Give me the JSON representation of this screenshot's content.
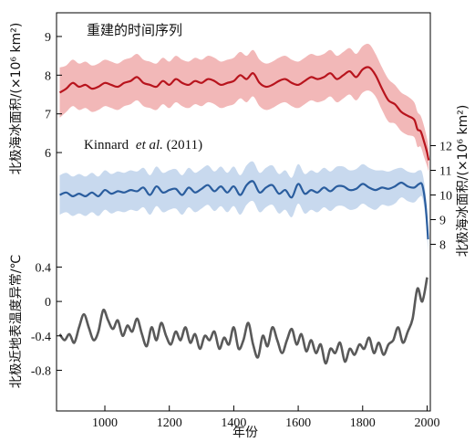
{
  "chart_data": {
    "type": "line",
    "xlabel": "年份",
    "x_ticks": [
      1000,
      1200,
      1400,
      1600,
      1800,
      2000
    ],
    "xlim": [
      850,
      2010
    ],
    "panels": [
      {
        "id": "reconstruction",
        "annotation": "重建的时间序列",
        "ylabel": "北极海冰面积/(×10⁶ km²)",
        "y_axis_side": "left",
        "y_ticks": [
          6,
          7,
          8,
          9
        ],
        "ylim": [
          5.6,
          9.4
        ],
        "colors": {
          "line": "#b8141d",
          "band": "#f2b8b8"
        },
        "series": [
          {
            "x": [
              860,
              880,
              900,
              920,
              940,
              960,
              980,
              1000,
              1020,
              1040,
              1060,
              1080,
              1100,
              1120,
              1140,
              1160,
              1180,
              1200,
              1220,
              1240,
              1260,
              1280,
              1300,
              1320,
              1340,
              1360,
              1380,
              1400,
              1420,
              1440,
              1460,
              1480,
              1500,
              1520,
              1540,
              1560,
              1580,
              1600,
              1620,
              1640,
              1660,
              1680,
              1700,
              1720,
              1740,
              1760,
              1780,
              1800,
              1820,
              1840,
              1860,
              1880,
              1900,
              1920,
              1940,
              1960,
              1970,
              1980,
              1990,
              2000,
              2005
            ],
            "y": [
              7.55,
              7.65,
              7.8,
              7.7,
              7.75,
              7.65,
              7.7,
              7.8,
              7.75,
              7.7,
              7.8,
              7.85,
              7.95,
              7.8,
              7.75,
              7.7,
              7.85,
              7.75,
              7.9,
              7.8,
              7.75,
              7.85,
              7.8,
              7.9,
              7.85,
              7.75,
              7.8,
              7.85,
              8.0,
              7.9,
              8.05,
              7.8,
              7.7,
              7.75,
              7.85,
              7.9,
              7.8,
              7.75,
              7.85,
              7.95,
              7.9,
              7.95,
              8.05,
              7.9,
              8.0,
              8.1,
              7.95,
              8.15,
              8.2,
              8.0,
              7.65,
              7.35,
              7.25,
              7.05,
              6.95,
              6.85,
              6.6,
              6.55,
              6.3,
              6.0,
              5.8
            ],
            "band_half_width": [
              0.65,
              0.6,
              0.6,
              0.6,
              0.6,
              0.6,
              0.6,
              0.6,
              0.6,
              0.6,
              0.6,
              0.6,
              0.6,
              0.6,
              0.6,
              0.6,
              0.6,
              0.6,
              0.6,
              0.6,
              0.6,
              0.6,
              0.6,
              0.6,
              0.6,
              0.6,
              0.6,
              0.6,
              0.6,
              0.6,
              0.6,
              0.6,
              0.6,
              0.6,
              0.6,
              0.6,
              0.6,
              0.6,
              0.6,
              0.6,
              0.6,
              0.6,
              0.6,
              0.6,
              0.6,
              0.6,
              0.6,
              0.6,
              0.6,
              0.55,
              0.55,
              0.55,
              0.5,
              0.5,
              0.5,
              0.45,
              0.45,
              0.4,
              0.4,
              0.35,
              0.3
            ]
          }
        ]
      },
      {
        "id": "kinnard",
        "annotation": "Kinnard",
        "annotation_italic": "et al.",
        "annotation_tail": " (2011)",
        "ylabel": "北极海冰面积/(×10⁶ km²)",
        "y_axis_side": "right",
        "y_ticks": [
          8,
          9,
          10,
          11,
          12
        ],
        "ylim": [
          7.5,
          12.5
        ],
        "colors": {
          "line": "#2a5d9e",
          "band": "#c8d9ee"
        },
        "series": [
          {
            "x": [
              860,
              880,
              900,
              920,
              940,
              960,
              980,
              1000,
              1020,
              1040,
              1060,
              1080,
              1100,
              1120,
              1140,
              1160,
              1180,
              1200,
              1220,
              1240,
              1260,
              1280,
              1300,
              1320,
              1340,
              1360,
              1380,
              1400,
              1420,
              1440,
              1460,
              1480,
              1500,
              1520,
              1540,
              1560,
              1580,
              1600,
              1620,
              1640,
              1660,
              1680,
              1700,
              1720,
              1740,
              1760,
              1780,
              1800,
              1820,
              1840,
              1860,
              1880,
              1900,
              1920,
              1940,
              1960,
              1975,
              1985,
              1995,
              2003
            ],
            "y": [
              10.0,
              10.1,
              9.95,
              10.05,
              9.95,
              10.1,
              9.95,
              10.2,
              10.05,
              10.15,
              10.1,
              10.2,
              10.15,
              10.3,
              10.0,
              10.35,
              10.1,
              10.2,
              10.25,
              10.0,
              10.3,
              10.1,
              10.25,
              10.4,
              10.15,
              10.35,
              10.1,
              10.35,
              10.0,
              10.4,
              10.55,
              10.1,
              10.3,
              10.4,
              10.05,
              10.2,
              9.9,
              10.45,
              10.05,
              10.2,
              10.1,
              10.3,
              10.15,
              10.35,
              10.35,
              10.2,
              10.25,
              10.45,
              10.3,
              10.2,
              10.3,
              10.25,
              10.35,
              10.5,
              10.35,
              10.3,
              10.45,
              10.4,
              9.6,
              8.2
            ],
            "band_half_width": [
              0.8,
              0.8,
              0.8,
              0.8,
              0.8,
              0.8,
              0.8,
              0.8,
              0.8,
              0.8,
              0.8,
              0.8,
              0.8,
              0.8,
              0.8,
              0.8,
              0.8,
              0.8,
              0.8,
              0.8,
              0.8,
              0.8,
              0.8,
              0.8,
              0.8,
              0.8,
              0.8,
              0.8,
              0.8,
              0.8,
              0.8,
              0.8,
              0.8,
              0.8,
              0.8,
              0.8,
              0.8,
              0.8,
              0.8,
              0.8,
              0.8,
              0.8,
              0.8,
              0.8,
              0.8,
              0.8,
              0.8,
              0.8,
              0.8,
              0.8,
              0.7,
              0.7,
              0.7,
              0.6,
              0.6,
              0.6,
              0.55,
              0.5,
              0.5,
              0.5
            ]
          }
        ]
      },
      {
        "id": "temperature",
        "annotation": "",
        "ylabel": "北极近地表温度异常/℃",
        "y_axis_side": "left",
        "y_ticks": [
          0.4,
          0,
          -0.4,
          -0.8
        ],
        "y_tick_labels": [
          "0.4",
          "0",
          "-0.4",
          "-0.8"
        ],
        "ylim": [
          -1.05,
          0.5
        ],
        "colors": {
          "line": "#595959"
        },
        "series": [
          {
            "x": [
              860,
              875,
              890,
              905,
              920,
              935,
              950,
              965,
              980,
              995,
              1010,
              1025,
              1040,
              1055,
              1070,
              1085,
              1100,
              1115,
              1130,
              1145,
              1160,
              1175,
              1190,
              1205,
              1220,
              1235,
              1250,
              1265,
              1280,
              1295,
              1310,
              1325,
              1340,
              1355,
              1370,
              1385,
              1400,
              1415,
              1430,
              1445,
              1460,
              1475,
              1490,
              1505,
              1520,
              1535,
              1550,
              1565,
              1580,
              1595,
              1610,
              1625,
              1640,
              1655,
              1670,
              1685,
              1700,
              1715,
              1730,
              1745,
              1760,
              1775,
              1790,
              1805,
              1820,
              1835,
              1850,
              1865,
              1880,
              1895,
              1910,
              1925,
              1940,
              1955,
              1970,
              1985,
              2000
            ],
            "y": [
              -0.38,
              -0.45,
              -0.38,
              -0.48,
              -0.3,
              -0.15,
              -0.3,
              -0.45,
              -0.35,
              -0.1,
              -0.22,
              -0.32,
              -0.22,
              -0.4,
              -0.28,
              -0.35,
              -0.2,
              -0.38,
              -0.52,
              -0.3,
              -0.45,
              -0.25,
              -0.4,
              -0.5,
              -0.35,
              -0.45,
              -0.3,
              -0.48,
              -0.38,
              -0.55,
              -0.4,
              -0.45,
              -0.35,
              -0.55,
              -0.42,
              -0.5,
              -0.3,
              -0.55,
              -0.45,
              -0.25,
              -0.5,
              -0.65,
              -0.4,
              -0.52,
              -0.3,
              -0.45,
              -0.6,
              -0.45,
              -0.32,
              -0.5,
              -0.38,
              -0.58,
              -0.45,
              -0.6,
              -0.5,
              -0.72,
              -0.55,
              -0.6,
              -0.48,
              -0.7,
              -0.55,
              -0.62,
              -0.5,
              -0.55,
              -0.42,
              -0.6,
              -0.48,
              -0.62,
              -0.5,
              -0.45,
              -0.3,
              -0.48,
              -0.35,
              -0.2,
              0.15,
              0.0,
              0.28
            ]
          }
        ]
      }
    ]
  }
}
